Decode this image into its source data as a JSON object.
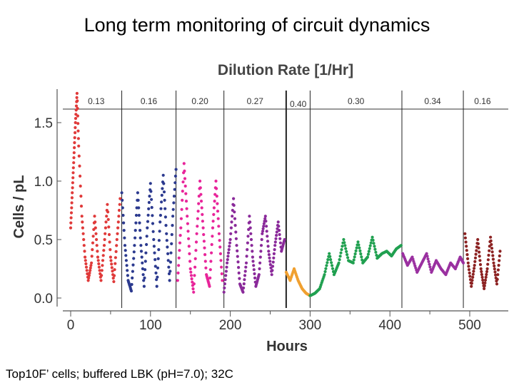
{
  "slide": {
    "title": "Long term monitoring of circuit dynamics",
    "caption": "Top10F’ cells; buffered LBK (pH=7.0); 32C"
  },
  "chart_data": {
    "type": "scatter",
    "title": "Dilution Rate [1/Hr]",
    "xlabel": "Hours",
    "ylabel": "Cells / pL",
    "xlim": [
      -5,
      545
    ],
    "ylim": [
      0,
      1.8
    ],
    "x_ticks": [
      0,
      100,
      200,
      300,
      400,
      500
    ],
    "x_tick_labels": [
      "0",
      "100",
      "200",
      "300",
      "400",
      "500"
    ],
    "y_ticks": [
      0.0,
      0.5,
      1.0,
      1.5
    ],
    "y_tick_labels": [
      "0.0",
      "0.5",
      "1.0",
      "1.5"
    ],
    "grid": false,
    "dilution_intervals": [
      {
        "label": "0.13",
        "start": 0,
        "end": 64
      },
      {
        "label": "0.16",
        "start": 64,
        "end": 132
      },
      {
        "label": "0.20",
        "start": 132,
        "end": 192
      },
      {
        "label": "0.27",
        "start": 192,
        "end": 270
      },
      {
        "label": "0.40",
        "start": 270,
        "end": 300
      },
      {
        "label": "0.30",
        "start": 300,
        "end": 415
      },
      {
        "label": "0.34",
        "start": 415,
        "end": 492
      },
      {
        "label": "0.16",
        "start": 492,
        "end": 540
      }
    ],
    "series": [
      {
        "color": "#e03a3a",
        "x": [
          0,
          2,
          4,
          6,
          8,
          10,
          14,
          18,
          22,
          26,
          30,
          34,
          38,
          42,
          46,
          50,
          54,
          58,
          62
        ],
        "y": [
          0.6,
          0.9,
          1.2,
          1.5,
          1.75,
          1.3,
          0.7,
          0.35,
          0.15,
          0.3,
          0.7,
          0.35,
          0.15,
          0.45,
          0.8,
          0.35,
          0.14,
          0.5,
          0.85
        ]
      },
      {
        "color": "#2c3a8f",
        "x": [
          64,
          68,
          72,
          76,
          80,
          84,
          88,
          92,
          96,
          100,
          104,
          108,
          112,
          116,
          120,
          124,
          128,
          132
        ],
        "y": [
          0.9,
          0.45,
          0.15,
          0.06,
          0.45,
          0.9,
          0.45,
          0.1,
          0.6,
          0.98,
          0.5,
          0.1,
          0.65,
          1.05,
          0.55,
          0.15,
          0.7,
          1.1
        ]
      },
      {
        "color": "#e8259a",
        "x": [
          134,
          138,
          142,
          146,
          150,
          154,
          158,
          162,
          166,
          170,
          174,
          178,
          182,
          186,
          190
        ],
        "y": [
          0.15,
          0.6,
          1.15,
          0.7,
          0.25,
          0.05,
          0.55,
          1.0,
          0.6,
          0.2,
          0.1,
          0.6,
          1.0,
          0.55,
          0.15
        ]
      },
      {
        "color": "#8a2a9a",
        "x": [
          192,
          196,
          200,
          204,
          208,
          212,
          216,
          220,
          224,
          228,
          232,
          236,
          240,
          244,
          248,
          252,
          256,
          260,
          264,
          268
        ],
        "y": [
          0.05,
          0.3,
          0.5,
          0.85,
          0.45,
          0.12,
          0.05,
          0.3,
          0.7,
          0.35,
          0.1,
          0.2,
          0.55,
          0.7,
          0.4,
          0.2,
          0.45,
          0.65,
          0.4,
          0.5
        ]
      },
      {
        "color": "#f0a030",
        "x": [
          270,
          275,
          280,
          285,
          290,
          295,
          300
        ],
        "y": [
          0.22,
          0.15,
          0.25,
          0.15,
          0.08,
          0.04,
          0.02
        ]
      },
      {
        "color": "#20a050",
        "x": [
          300,
          306,
          312,
          318,
          324,
          330,
          336,
          342,
          348,
          354,
          360,
          366,
          372,
          378,
          384,
          390,
          396,
          402,
          408,
          414
        ],
        "y": [
          0.02,
          0.04,
          0.08,
          0.2,
          0.38,
          0.2,
          0.3,
          0.5,
          0.32,
          0.3,
          0.48,
          0.3,
          0.35,
          0.52,
          0.34,
          0.38,
          0.4,
          0.36,
          0.42,
          0.45
        ]
      },
      {
        "color": "#9a30a0",
        "x": [
          416,
          422,
          428,
          434,
          440,
          446,
          452,
          458,
          464,
          470,
          476,
          482,
          488,
          492
        ],
        "y": [
          0.38,
          0.28,
          0.35,
          0.22,
          0.3,
          0.38,
          0.22,
          0.32,
          0.25,
          0.2,
          0.3,
          0.25,
          0.35,
          0.3
        ]
      },
      {
        "color": "#8c2222",
        "x": [
          494,
          498,
          502,
          506,
          510,
          514,
          518,
          522,
          526,
          530,
          534,
          538
        ],
        "y": [
          0.55,
          0.3,
          0.1,
          0.28,
          0.5,
          0.25,
          0.08,
          0.25,
          0.52,
          0.3,
          0.12,
          0.4
        ]
      }
    ]
  }
}
